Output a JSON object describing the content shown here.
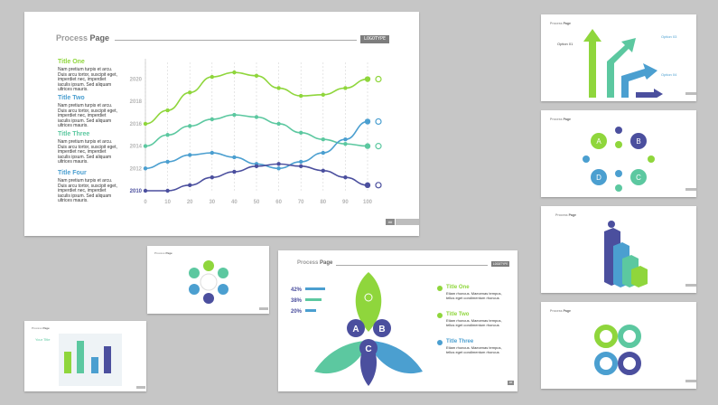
{
  "colors": {
    "green": "#8fd63c",
    "teal": "#5cc8a0",
    "blue": "#4b9fd0",
    "navy": "#4b4f9e",
    "grey": "#9a9a9a",
    "bg": "#c6c6c6"
  },
  "main_slide": {
    "header": {
      "word1": "Process",
      "word2": "Page",
      "logo": "LOGOTYPE"
    },
    "titles": [
      {
        "title": "Title One",
        "color": "#8fd63c",
        "text": "Nam pretium turpis et arcu.\nDuis arcu tortor, suscipit eget,\nimperdiet nec, imperdiet\niaculis ipsum. Sed aliquam\nultrices mauris."
      },
      {
        "title": "Title Two",
        "color": "#4b9fd0",
        "text": "Nam pretium turpis et arcu.\nDuis arcu tortor, suscipit eget,\nimperdiet nec, imperdiet\niaculis ipsum. Sed aliquam\nultrices mauris."
      },
      {
        "title": "Title Three",
        "color": "#5cc8a0",
        "text": "Nam pretium turpis et arcu.\nDuis arcu tortor, suscipit eget,\nimperdiet nec, imperdiet\niaculis ipsum. Sed aliquam\nultrices mauris."
      },
      {
        "title": "Title Four",
        "color": "#4b9fd0",
        "text": "Nam pretium turpis et arcu.\nDuis arcu tortor, suscipit eget,\nimperdiet nec, imperdiet\niaculis ipsum. Sed aliquam\nultrices mauris."
      }
    ],
    "page_number": "##"
  },
  "chart_data": {
    "type": "line",
    "x": [
      0,
      10,
      20,
      30,
      40,
      50,
      60,
      70,
      80,
      90,
      100
    ],
    "y_ticks": [
      "2010",
      "2012",
      "2014",
      "2016",
      "2018",
      "2020"
    ],
    "series": [
      {
        "color": "#8fd63c",
        "values": [
          2016,
          2017.2,
          2018.8,
          2020.2,
          2020.6,
          2020.3,
          2019.2,
          2018.5,
          2018.6,
          2019.2,
          2020
        ]
      },
      {
        "color": "#5cc8a0",
        "values": [
          2014,
          2015,
          2015.8,
          2016.4,
          2016.8,
          2016.6,
          2016.0,
          2015.2,
          2014.6,
          2014.2,
          2014
        ]
      },
      {
        "color": "#4b9fd0",
        "values": [
          2012,
          2012.6,
          2013.2,
          2013.4,
          2013,
          2012.4,
          2012,
          2012.6,
          2013.4,
          2014.6,
          2016.2
        ]
      },
      {
        "color": "#4b4f9e",
        "values": [
          2010,
          2010,
          2010.5,
          2011.2,
          2011.7,
          2012.2,
          2012.4,
          2012.2,
          2011.8,
          2011.2,
          2010.5
        ]
      }
    ],
    "xlim": [
      0,
      100
    ],
    "ylim": [
      2010,
      2021.5
    ]
  },
  "petal_slide": {
    "header": {
      "word1": "Process",
      "word2": "Page",
      "logo": "LOGOTYPE"
    },
    "percents": [
      "42%",
      "38%",
      "20%"
    ],
    "petal_letters": [
      "A",
      "B",
      "C"
    ],
    "items": [
      {
        "title": "Title One",
        "color": "#8fd63c",
        "text": "Etiam rhoncus. Maecenas tempus,\ntellus eget condimentum rhoncus"
      },
      {
        "title": "Title Two",
        "color": "#8fd63c",
        "text": "Etiam rhoncus. Maecenas tempus,\ntellus eget condimentum rhoncus"
      },
      {
        "title": "Title Three",
        "color": "#4b9fd0",
        "text": "Etiam rhoncus. Maecenas tempus,\ntellus eget condimentum rhoncus"
      }
    ]
  },
  "circle_slide": {
    "letters": [
      "A",
      "B",
      "C",
      "D"
    ]
  }
}
